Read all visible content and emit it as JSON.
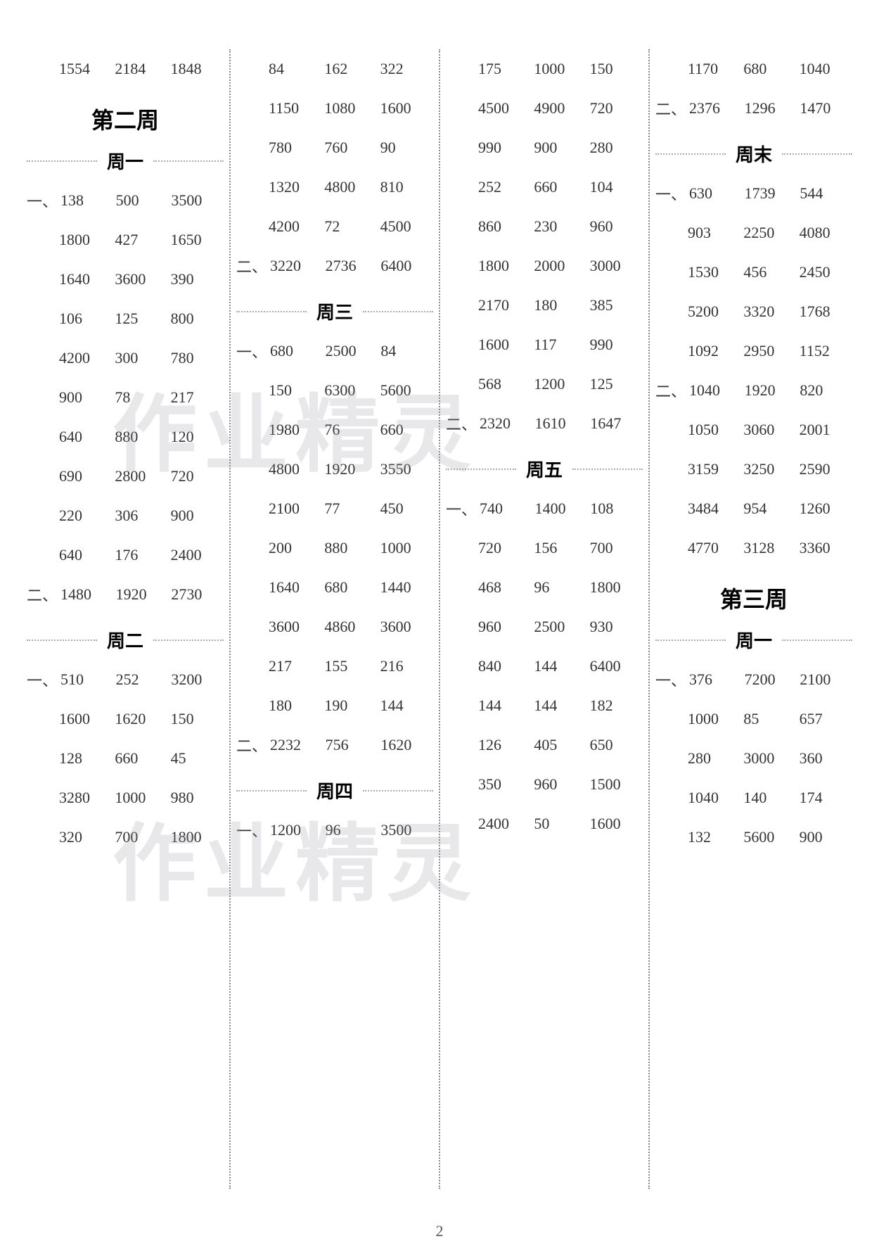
{
  "page_number": "2",
  "watermark_text": "作业精灵",
  "columns": [
    {
      "items": [
        {
          "type": "row",
          "prefix": "",
          "cells": [
            "1554",
            "2184",
            "1848"
          ]
        },
        {
          "type": "week",
          "text": "第二周"
        },
        {
          "type": "day",
          "text": "周一"
        },
        {
          "type": "row",
          "prefix": "一、",
          "cells": [
            "138",
            "500",
            "3500"
          ]
        },
        {
          "type": "row",
          "prefix": "",
          "cells": [
            "1800",
            "427",
            "1650"
          ]
        },
        {
          "type": "row",
          "prefix": "",
          "cells": [
            "1640",
            "3600",
            "390"
          ]
        },
        {
          "type": "row",
          "prefix": "",
          "cells": [
            "106",
            "125",
            "800"
          ]
        },
        {
          "type": "row",
          "prefix": "",
          "cells": [
            "4200",
            "300",
            "780"
          ]
        },
        {
          "type": "row",
          "prefix": "",
          "cells": [
            "900",
            "78",
            "217"
          ]
        },
        {
          "type": "row",
          "prefix": "",
          "cells": [
            "640",
            "880",
            "120"
          ]
        },
        {
          "type": "row",
          "prefix": "",
          "cells": [
            "690",
            "2800",
            "720"
          ]
        },
        {
          "type": "row",
          "prefix": "",
          "cells": [
            "220",
            "306",
            "900"
          ]
        },
        {
          "type": "row",
          "prefix": "",
          "cells": [
            "640",
            "176",
            "2400"
          ]
        },
        {
          "type": "row",
          "prefix": "二、",
          "cells": [
            "1480",
            "1920",
            "2730"
          ]
        },
        {
          "type": "day",
          "text": "周二"
        },
        {
          "type": "row",
          "prefix": "一、",
          "cells": [
            "510",
            "252",
            "3200"
          ]
        },
        {
          "type": "row",
          "prefix": "",
          "cells": [
            "1600",
            "1620",
            "150"
          ]
        },
        {
          "type": "row",
          "prefix": "",
          "cells": [
            "128",
            "660",
            "45"
          ]
        },
        {
          "type": "row",
          "prefix": "",
          "cells": [
            "3280",
            "1000",
            "980"
          ]
        },
        {
          "type": "row",
          "prefix": "",
          "cells": [
            "320",
            "700",
            "1800"
          ]
        }
      ]
    },
    {
      "items": [
        {
          "type": "row",
          "prefix": "",
          "cells": [
            "84",
            "162",
            "322"
          ]
        },
        {
          "type": "row",
          "prefix": "",
          "cells": [
            "1150",
            "1080",
            "1600"
          ]
        },
        {
          "type": "row",
          "prefix": "",
          "cells": [
            "780",
            "760",
            "90"
          ]
        },
        {
          "type": "row",
          "prefix": "",
          "cells": [
            "1320",
            "4800",
            "810"
          ]
        },
        {
          "type": "row",
          "prefix": "",
          "cells": [
            "4200",
            "72",
            "4500"
          ]
        },
        {
          "type": "row",
          "prefix": "二、",
          "cells": [
            "3220",
            "2736",
            "6400"
          ]
        },
        {
          "type": "day",
          "text": "周三"
        },
        {
          "type": "row",
          "prefix": "一、",
          "cells": [
            "680",
            "2500",
            "84"
          ]
        },
        {
          "type": "row",
          "prefix": "",
          "cells": [
            "150",
            "6300",
            "5600"
          ]
        },
        {
          "type": "row",
          "prefix": "",
          "cells": [
            "1980",
            "76",
            "660"
          ]
        },
        {
          "type": "row",
          "prefix": "",
          "cells": [
            "4800",
            "1920",
            "3550"
          ]
        },
        {
          "type": "row",
          "prefix": "",
          "cells": [
            "2100",
            "77",
            "450"
          ]
        },
        {
          "type": "row",
          "prefix": "",
          "cells": [
            "200",
            "880",
            "1000"
          ]
        },
        {
          "type": "row",
          "prefix": "",
          "cells": [
            "1640",
            "680",
            "1440"
          ]
        },
        {
          "type": "row",
          "prefix": "",
          "cells": [
            "3600",
            "4860",
            "3600"
          ]
        },
        {
          "type": "row",
          "prefix": "",
          "cells": [
            "217",
            "155",
            "216"
          ]
        },
        {
          "type": "row",
          "prefix": "",
          "cells": [
            "180",
            "190",
            "144"
          ]
        },
        {
          "type": "row",
          "prefix": "二、",
          "cells": [
            "2232",
            "756",
            "1620"
          ]
        },
        {
          "type": "day",
          "text": "周四"
        },
        {
          "type": "row",
          "prefix": "一、",
          "cells": [
            "1200",
            "96",
            "3500"
          ]
        }
      ]
    },
    {
      "items": [
        {
          "type": "row",
          "prefix": "",
          "cells": [
            "175",
            "1000",
            "150"
          ]
        },
        {
          "type": "row",
          "prefix": "",
          "cells": [
            "4500",
            "4900",
            "720"
          ]
        },
        {
          "type": "row",
          "prefix": "",
          "cells": [
            "990",
            "900",
            "280"
          ]
        },
        {
          "type": "row",
          "prefix": "",
          "cells": [
            "252",
            "660",
            "104"
          ]
        },
        {
          "type": "row",
          "prefix": "",
          "cells": [
            "860",
            "230",
            "960"
          ]
        },
        {
          "type": "row",
          "prefix": "",
          "cells": [
            "1800",
            "2000",
            "3000"
          ]
        },
        {
          "type": "row",
          "prefix": "",
          "cells": [
            "2170",
            "180",
            "385"
          ]
        },
        {
          "type": "row",
          "prefix": "",
          "cells": [
            "1600",
            "117",
            "990"
          ]
        },
        {
          "type": "row",
          "prefix": "",
          "cells": [
            "568",
            "1200",
            "125"
          ]
        },
        {
          "type": "row",
          "prefix": "二、",
          "cells": [
            "2320",
            "1610",
            "1647"
          ]
        },
        {
          "type": "day",
          "text": "周五"
        },
        {
          "type": "row",
          "prefix": "一、",
          "cells": [
            "740",
            "1400",
            "108"
          ]
        },
        {
          "type": "row",
          "prefix": "",
          "cells": [
            "720",
            "156",
            "700"
          ]
        },
        {
          "type": "row",
          "prefix": "",
          "cells": [
            "468",
            "96",
            "1800"
          ]
        },
        {
          "type": "row",
          "prefix": "",
          "cells": [
            "960",
            "2500",
            "930"
          ]
        },
        {
          "type": "row",
          "prefix": "",
          "cells": [
            "840",
            "144",
            "6400"
          ]
        },
        {
          "type": "row",
          "prefix": "",
          "cells": [
            "144",
            "144",
            "182"
          ]
        },
        {
          "type": "row",
          "prefix": "",
          "cells": [
            "126",
            "405",
            "650"
          ]
        },
        {
          "type": "row",
          "prefix": "",
          "cells": [
            "350",
            "960",
            "1500"
          ]
        },
        {
          "type": "row",
          "prefix": "",
          "cells": [
            "2400",
            "50",
            "1600"
          ]
        }
      ]
    },
    {
      "items": [
        {
          "type": "row",
          "prefix": "",
          "cells": [
            "1170",
            "680",
            "1040"
          ]
        },
        {
          "type": "row",
          "prefix": "二、",
          "cells": [
            "2376",
            "1296",
            "1470"
          ]
        },
        {
          "type": "day",
          "text": "周末"
        },
        {
          "type": "row",
          "prefix": "一、",
          "cells": [
            "630",
            "1739",
            "544"
          ]
        },
        {
          "type": "row",
          "prefix": "",
          "cells": [
            "903",
            "2250",
            "4080"
          ]
        },
        {
          "type": "row",
          "prefix": "",
          "cells": [
            "1530",
            "456",
            "2450"
          ]
        },
        {
          "type": "row",
          "prefix": "",
          "cells": [
            "5200",
            "3320",
            "1768"
          ]
        },
        {
          "type": "row",
          "prefix": "",
          "cells": [
            "1092",
            "2950",
            "1152"
          ]
        },
        {
          "type": "row",
          "prefix": "二、",
          "cells": [
            "1040",
            "1920",
            "820"
          ]
        },
        {
          "type": "row",
          "prefix": "",
          "cells": [
            "1050",
            "3060",
            "2001"
          ]
        },
        {
          "type": "row",
          "prefix": "",
          "cells": [
            "3159",
            "3250",
            "2590"
          ]
        },
        {
          "type": "row",
          "prefix": "",
          "cells": [
            "3484",
            "954",
            "1260"
          ]
        },
        {
          "type": "row",
          "prefix": "",
          "cells": [
            "4770",
            "3128",
            "3360"
          ]
        },
        {
          "type": "week",
          "text": "第三周"
        },
        {
          "type": "day",
          "text": "周一"
        },
        {
          "type": "row",
          "prefix": "一、",
          "cells": [
            "376",
            "7200",
            "2100"
          ]
        },
        {
          "type": "row",
          "prefix": "",
          "cells": [
            "1000",
            "85",
            "657"
          ]
        },
        {
          "type": "row",
          "prefix": "",
          "cells": [
            "280",
            "3000",
            "360"
          ]
        },
        {
          "type": "row",
          "prefix": "",
          "cells": [
            "1040",
            "140",
            "174"
          ]
        },
        {
          "type": "row",
          "prefix": "",
          "cells": [
            "132",
            "5600",
            "900"
          ]
        }
      ]
    }
  ]
}
